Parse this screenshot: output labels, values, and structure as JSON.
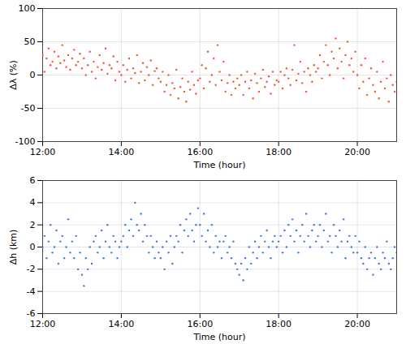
{
  "chart_data": [
    {
      "type": "scatter",
      "xlabel": "Time (hour)",
      "ylabel": "Δλ (%)",
      "color": "#f4562f",
      "marker": "dot",
      "grid": true,
      "xlim": [
        12,
        21
      ],
      "xticks": [
        {
          "value": 12,
          "label": "12:00"
        },
        {
          "value": 14,
          "label": "14:00"
        },
        {
          "value": 16,
          "label": "16:00"
        },
        {
          "value": 18,
          "label": "18:00"
        },
        {
          "value": 20,
          "label": "20:00"
        }
      ],
      "ylim": [
        -100,
        100
      ],
      "yticks": [
        -100,
        -50,
        0,
        50,
        100
      ],
      "x": [
        12,
        12.05,
        12.1,
        12.15,
        12.2,
        12.25,
        12.3,
        12.35,
        12.4,
        12.45,
        12.5,
        12.55,
        12.6,
        12.65,
        12.7,
        12.75,
        12.8,
        12.85,
        12.9,
        12.95,
        13,
        13.05,
        13.1,
        13.15,
        13.2,
        13.25,
        13.3,
        13.35,
        13.4,
        13.45,
        13.5,
        13.55,
        13.6,
        13.65,
        13.7,
        13.75,
        13.8,
        13.85,
        13.9,
        13.95,
        14,
        14.05,
        14.1,
        14.15,
        14.2,
        14.25,
        14.3,
        14.35,
        14.4,
        14.45,
        14.5,
        14.55,
        14.6,
        14.65,
        14.7,
        14.75,
        14.8,
        14.85,
        14.9,
        14.95,
        15,
        15.05,
        15.1,
        15.15,
        15.2,
        15.25,
        15.3,
        15.35,
        15.4,
        15.45,
        15.5,
        15.55,
        15.6,
        15.65,
        15.7,
        15.75,
        15.8,
        15.85,
        15.9,
        15.95,
        16,
        16.05,
        16.1,
        16.15,
        16.2,
        16.25,
        16.3,
        16.35,
        16.4,
        16.45,
        16.5,
        16.55,
        16.6,
        16.65,
        16.7,
        16.75,
        16.8,
        16.85,
        16.9,
        16.95,
        17,
        17.05,
        17.1,
        17.15,
        17.2,
        17.25,
        17.3,
        17.35,
        17.4,
        17.45,
        17.5,
        17.55,
        17.6,
        17.65,
        17.7,
        17.75,
        17.8,
        17.85,
        17.9,
        17.95,
        18,
        18.05,
        18.1,
        18.15,
        18.2,
        18.25,
        18.3,
        18.35,
        18.4,
        18.45,
        18.5,
        18.55,
        18.6,
        18.65,
        18.7,
        18.75,
        18.8,
        18.85,
        18.9,
        18.95,
        19,
        19.05,
        19.1,
        19.15,
        19.2,
        19.25,
        19.3,
        19.35,
        19.4,
        19.45,
        19.5,
        19.55,
        19.6,
        19.65,
        19.7,
        19.75,
        19.8,
        19.85,
        19.9,
        19.95,
        20,
        20.05,
        20.1,
        20.15,
        20.2,
        20.25,
        20.3,
        20.35,
        20.4,
        20.45,
        20.5,
        20.55,
        20.6,
        20.65,
        20.7,
        20.75,
        20.8,
        20.85,
        20.9,
        20.95,
        21
      ],
      "values": [
        30,
        5,
        25,
        40,
        15,
        20,
        35,
        10,
        28,
        18,
        45,
        22,
        12,
        30,
        8,
        25,
        38,
        15,
        20,
        32,
        10,
        25,
        0,
        15,
        35,
        5,
        20,
        -5,
        12,
        30,
        8,
        18,
        40,
        2,
        15,
        10,
        28,
        -8,
        20,
        5,
        0,
        15,
        -10,
        8,
        25,
        -5,
        10,
        3,
        30,
        -12,
        5,
        18,
        -8,
        12,
        0,
        22,
        -15,
        6,
        10,
        -5,
        -10,
        5,
        -25,
        -15,
        0,
        -30,
        -12,
        -20,
        8,
        -35,
        -18,
        -5,
        -25,
        -40,
        -10,
        -22,
        5,
        -15,
        -28,
        -8,
        -5,
        15,
        -20,
        10,
        35,
        -10,
        0,
        25,
        -15,
        45,
        5,
        -8,
        20,
        -25,
        -12,
        0,
        -30,
        -10,
        -20,
        -5,
        -15,
        0,
        -30,
        -10,
        5,
        -20,
        -8,
        -35,
        2,
        -12,
        -25,
        -5,
        8,
        -18,
        -10,
        -2,
        -28,
        5,
        -15,
        -8,
        -10,
        5,
        -20,
        0,
        10,
        -5,
        -15,
        8,
        45,
        -8,
        2,
        20,
        -12,
        5,
        -25,
        10,
        0,
        -10,
        15,
        5,
        10,
        30,
        -5,
        20,
        45,
        15,
        0,
        35,
        25,
        55,
        10,
        40,
        20,
        -5,
        30,
        50,
        15,
        25,
        5,
        35,
        0,
        -20,
        15,
        -10,
        25,
        -30,
        -5,
        10,
        -15,
        -25,
        5,
        -35,
        -10,
        20,
        -20,
        -5,
        -40,
        0,
        -15,
        -25,
        -10
      ]
    },
    {
      "type": "scatter",
      "xlabel": "Time (hour)",
      "ylabel": "Δh (km)",
      "color": "#3a7be0",
      "marker": "dot",
      "grid": true,
      "xlim": [
        12,
        21
      ],
      "xticks": [
        {
          "value": 12,
          "label": "12:00"
        },
        {
          "value": 14,
          "label": "14:00"
        },
        {
          "value": 16,
          "label": "16:00"
        },
        {
          "value": 18,
          "label": "18:00"
        },
        {
          "value": 20,
          "label": "20:00"
        }
      ],
      "ylim": [
        -6,
        6
      ],
      "yticks": [
        -6,
        -4,
        -2,
        0,
        2,
        4,
        6
      ],
      "x": [
        12,
        12.05,
        12.1,
        12.15,
        12.2,
        12.25,
        12.3,
        12.35,
        12.4,
        12.45,
        12.5,
        12.55,
        12.6,
        12.65,
        12.7,
        12.75,
        12.8,
        12.85,
        12.9,
        12.95,
        13,
        13.05,
        13.1,
        13.15,
        13.2,
        13.25,
        13.3,
        13.35,
        13.4,
        13.45,
        13.5,
        13.55,
        13.6,
        13.65,
        13.7,
        13.75,
        13.8,
        13.85,
        13.9,
        13.95,
        14,
        14.05,
        14.1,
        14.15,
        14.2,
        14.25,
        14.3,
        14.35,
        14.4,
        14.45,
        14.5,
        14.55,
        14.6,
        14.65,
        14.7,
        14.75,
        14.8,
        14.85,
        14.9,
        14.95,
        15,
        15.05,
        15.1,
        15.15,
        15.2,
        15.25,
        15.3,
        15.35,
        15.4,
        15.45,
        15.5,
        15.55,
        15.6,
        15.65,
        15.7,
        15.75,
        15.8,
        15.85,
        15.9,
        15.95,
        16,
        16.05,
        16.1,
        16.15,
        16.2,
        16.25,
        16.3,
        16.35,
        16.4,
        16.45,
        16.5,
        16.55,
        16.6,
        16.65,
        16.7,
        16.75,
        16.8,
        16.85,
        16.9,
        16.95,
        17,
        17.05,
        17.1,
        17.15,
        17.2,
        17.25,
        17.3,
        17.35,
        17.4,
        17.45,
        17.5,
        17.55,
        17.6,
        17.65,
        17.7,
        17.75,
        17.8,
        17.85,
        17.9,
        17.95,
        18,
        18.05,
        18.1,
        18.15,
        18.2,
        18.25,
        18.3,
        18.35,
        18.4,
        18.45,
        18.5,
        18.55,
        18.6,
        18.65,
        18.7,
        18.75,
        18.8,
        18.85,
        18.9,
        18.95,
        19,
        19.05,
        19.1,
        19.15,
        19.2,
        19.25,
        19.3,
        19.35,
        19.4,
        19.45,
        19.5,
        19.55,
        19.6,
        19.65,
        19.7,
        19.75,
        19.8,
        19.85,
        19.9,
        19.95,
        20,
        20.05,
        20.1,
        20.15,
        20.2,
        20.25,
        20.3,
        20.35,
        20.4,
        20.45,
        20.5,
        20.55,
        20.6,
        20.65,
        20.7,
        20.75,
        20.8,
        20.85,
        20.9,
        20.95,
        21
      ],
      "values": [
        0,
        1,
        -1,
        0.5,
        2,
        -0.5,
        0,
        1.5,
        -1.5,
        0.5,
        1,
        -1,
        0,
        2.5,
        -0.5,
        0.5,
        -1,
        1,
        -2,
        -0.5,
        -2.5,
        -3.5,
        -1,
        -2,
        0,
        -1.5,
        0.5,
        1,
        -0.5,
        0,
        1.5,
        -1,
        0.5,
        2,
        0,
        -0.5,
        1,
        0.5,
        -1,
        0,
        0.5,
        1,
        2,
        0,
        1.5,
        2.5,
        1,
        4,
        2,
        1.5,
        3,
        0.5,
        2,
        1,
        -0.5,
        1,
        0,
        -1,
        0.5,
        -0.5,
        -1,
        0,
        -2,
        0.5,
        -0.5,
        1,
        -1.5,
        0,
        1,
        0.5,
        2,
        -0.5,
        1.5,
        2.5,
        1,
        3,
        1.5,
        0.5,
        2,
        3.5,
        2,
        1,
        3,
        0.5,
        1.5,
        0,
        2,
        -0.5,
        1,
        0,
        0.5,
        -1,
        0.5,
        1,
        -0.5,
        0,
        -1,
        0.5,
        -1.5,
        -2,
        -2.5,
        -1.5,
        -3,
        -1,
        -2,
        0,
        -1.5,
        -0.5,
        0.5,
        -1,
        0,
        1,
        -0.5,
        0.5,
        1.5,
        0,
        -1,
        0.5,
        1,
        0,
        0.5,
        1,
        -0.5,
        1.5,
        0,
        2,
        1,
        2.5,
        0.5,
        1.5,
        -0.5,
        1,
        2,
        0.5,
        3,
        1,
        0,
        1.5,
        2,
        0.5,
        1,
        2,
        0,
        1.5,
        3,
        0.5,
        1,
        -0.5,
        2,
        1,
        0,
        1.5,
        0.5,
        2.5,
        -1,
        0.5,
        1,
        0,
        -0.5,
        1,
        -0.5,
        0.5,
        -1,
        -1.5,
        0,
        -2,
        -1,
        -0.5,
        -2.5,
        -1,
        0,
        -1.5,
        -2,
        -0.5,
        -1,
        0.5,
        -1.5,
        -2,
        -1,
        0,
        -0.5
      ]
    }
  ]
}
